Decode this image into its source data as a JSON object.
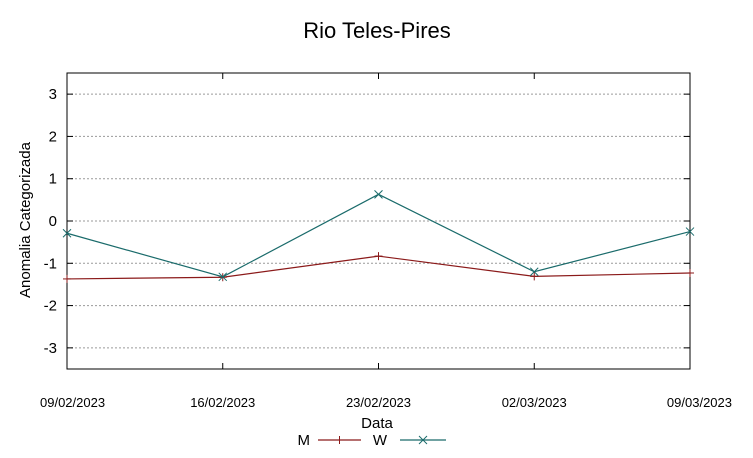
{
  "chart_data": {
    "type": "line",
    "title": "Rio Teles-Pires",
    "xlabel": "Data",
    "ylabel": "Anomalia Categorizada",
    "categories": [
      "09/02/2023",
      "16/02/2023",
      "23/02/2023",
      "02/03/2023",
      "09/03/2023"
    ],
    "ylim": [
      -3.5,
      3.5
    ],
    "yticks": [
      -3,
      -2,
      -1,
      0,
      1,
      2,
      3
    ],
    "grid": "horizontal-dashed",
    "legend_position": "bottom-center",
    "series": [
      {
        "name": "M",
        "values": [
          -1.37,
          -1.33,
          -0.83,
          -1.31,
          -1.23
        ],
        "color": "#8b1a1a",
        "marker": "plus"
      },
      {
        "name": "W",
        "values": [
          -0.29,
          -1.32,
          0.63,
          -1.2,
          -0.25
        ],
        "color": "#1a6b6b",
        "marker": "x"
      }
    ]
  }
}
